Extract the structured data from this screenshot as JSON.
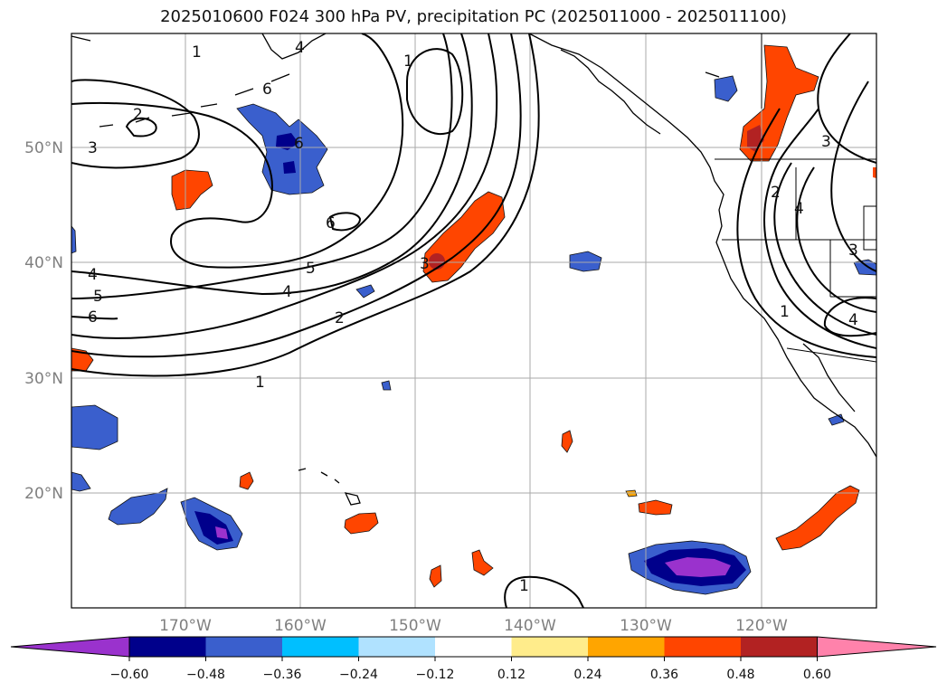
{
  "title": "2025010600 F024 300 hPa PV, precipitation PC (2025011000 - 2025011100)",
  "lat_labels": [
    "50°N",
    "40°N",
    "30°N",
    "20°N"
  ],
  "lon_labels": [
    "170°W",
    "160°W",
    "150°W",
    "140°W",
    "130°W",
    "120°W"
  ],
  "contour_labels": [
    "1",
    "1",
    "1",
    "1",
    "2",
    "2",
    "2",
    "3",
    "3",
    "3",
    "3",
    "4",
    "4",
    "4",
    "4",
    "4",
    "5",
    "5",
    "6",
    "6",
    "6",
    "6",
    "1"
  ],
  "colorbar": {
    "ticks": [
      "−0.60",
      "−0.48",
      "−0.36",
      "−0.24",
      "−0.12",
      "0.12",
      "0.24",
      "0.36",
      "0.48",
      "0.60"
    ],
    "colors": [
      "#9a32cd",
      "#00008b",
      "#3a5fcd",
      "#00bfff",
      "#b0e2ff",
      "#ffffff",
      "#ffec8b",
      "#ffa500",
      "#ff4500",
      "#b22222",
      "#ff82ab"
    ]
  }
}
